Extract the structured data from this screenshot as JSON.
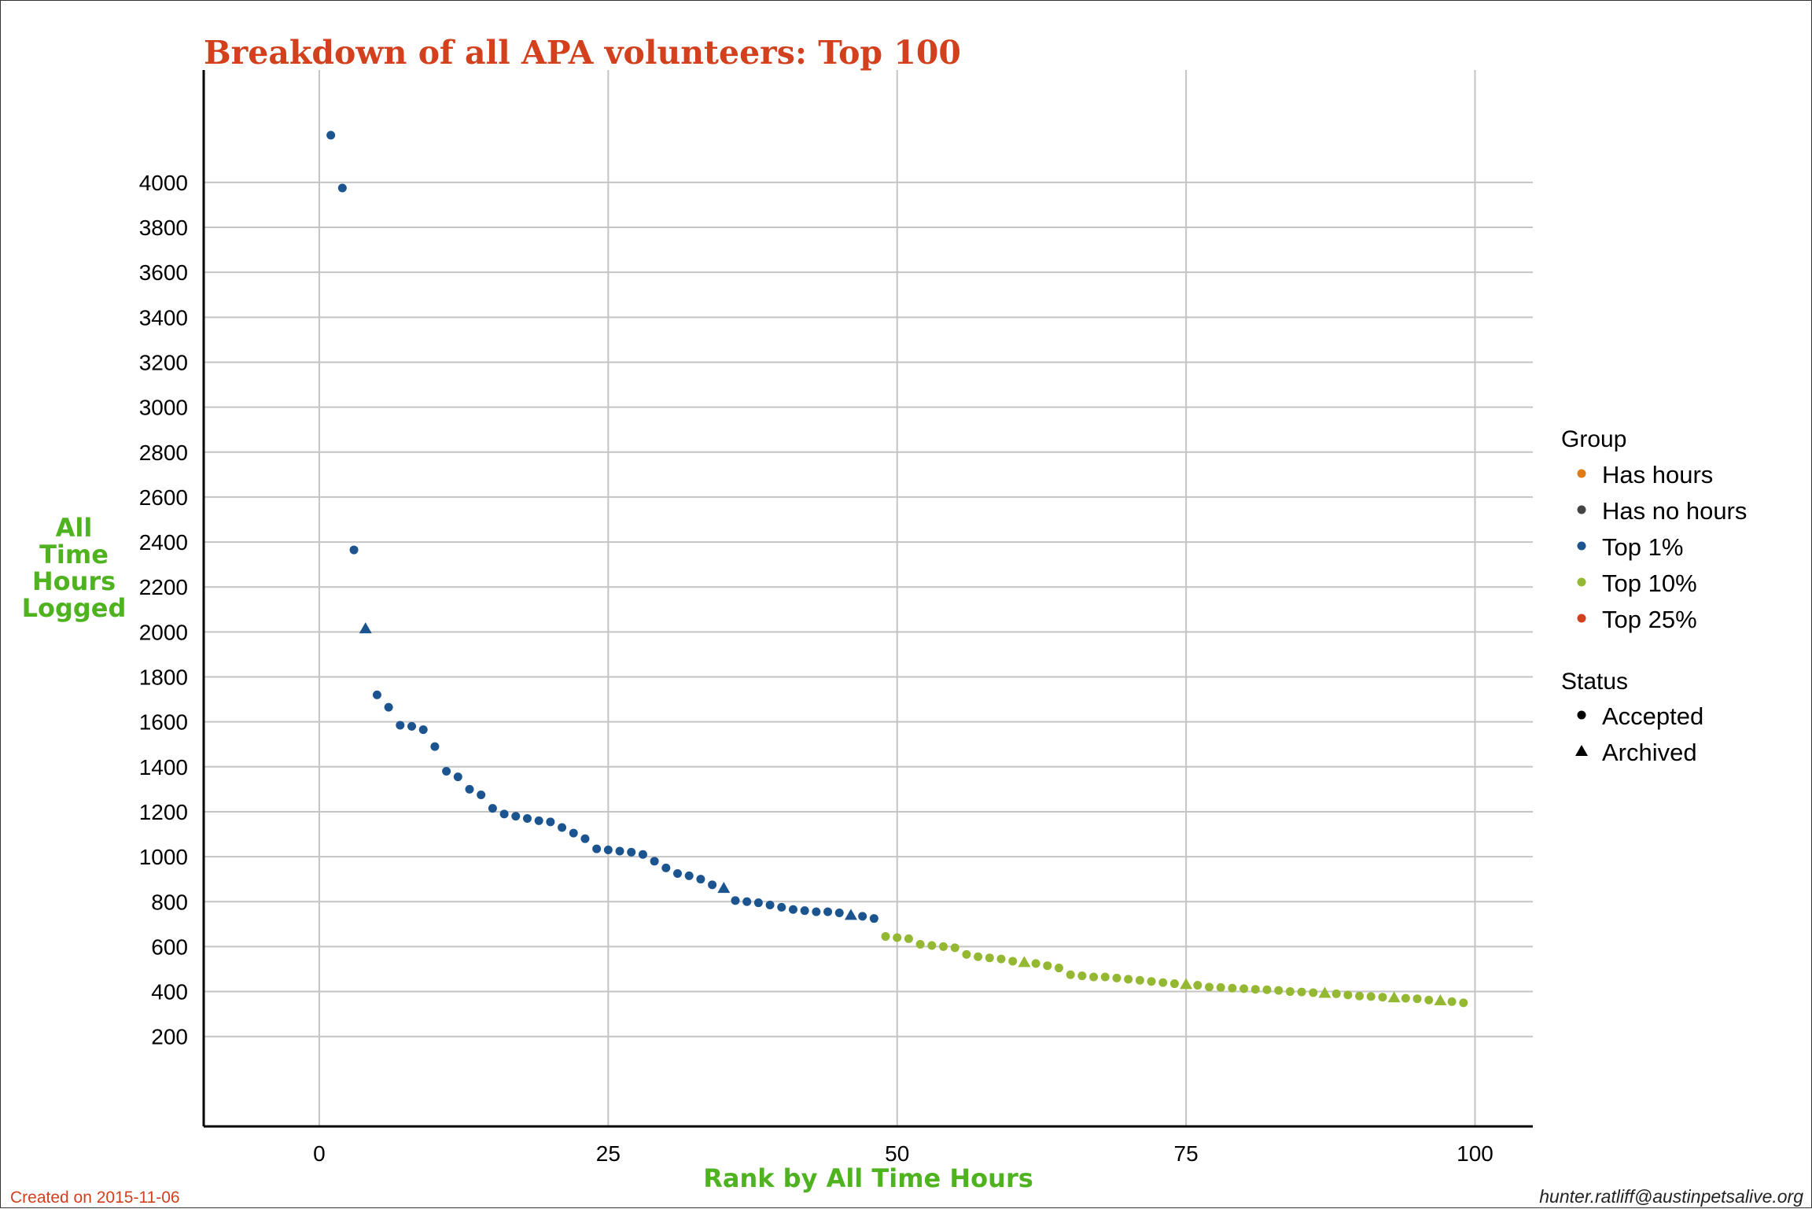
{
  "chart_data": {
    "type": "scatter",
    "title": "Breakdown of all APA volunteers: Top 100",
    "xlabel": "Rank by All Time Hours",
    "ylabel": [
      "All",
      "Time",
      "Hours",
      "Logged"
    ],
    "xlim": [
      -10,
      105
    ],
    "ylim": [
      -200,
      4500
    ],
    "x_ticks": [
      0,
      25,
      50,
      75,
      100
    ],
    "y_ticks": [
      200,
      400,
      600,
      800,
      1000,
      1200,
      1400,
      1600,
      1800,
      2000,
      2200,
      2400,
      2600,
      2800,
      3000,
      3200,
      3400,
      3600,
      3800,
      4000
    ],
    "grid": true,
    "colors": {
      "Has hours": "#e07b14",
      "Has no hours": "#444444",
      "Top 1%": "#1c5490",
      "Top 10%": "#94b832",
      "Top 25%": "#d2401e",
      "title": "#d2401e",
      "axis_title": "#4fb320"
    },
    "legend": {
      "position": "right",
      "group_title": "Group",
      "groups": [
        "Has hours",
        "Has no hours",
        "Top 1%",
        "Top 10%",
        "Top 25%"
      ],
      "status_title": "Status",
      "statuses": [
        {
          "label": "Accepted",
          "shape": "circle"
        },
        {
          "label": "Archived",
          "shape": "triangle"
        }
      ]
    },
    "series": [
      {
        "name": "Top 1%",
        "points": [
          {
            "x": 1,
            "y": 4210,
            "s": "circle"
          },
          {
            "x": 2,
            "y": 3975,
            "s": "circle"
          },
          {
            "x": 3,
            "y": 2365,
            "s": "circle"
          },
          {
            "x": 4,
            "y": 2015,
            "s": "triangle"
          },
          {
            "x": 5,
            "y": 1720,
            "s": "circle"
          },
          {
            "x": 6,
            "y": 1665,
            "s": "circle"
          },
          {
            "x": 7,
            "y": 1585,
            "s": "circle"
          },
          {
            "x": 8,
            "y": 1580,
            "s": "circle"
          },
          {
            "x": 9,
            "y": 1565,
            "s": "circle"
          },
          {
            "x": 10,
            "y": 1490,
            "s": "circle"
          },
          {
            "x": 11,
            "y": 1380,
            "s": "circle"
          },
          {
            "x": 12,
            "y": 1355,
            "s": "circle"
          },
          {
            "x": 13,
            "y": 1300,
            "s": "circle"
          },
          {
            "x": 14,
            "y": 1275,
            "s": "circle"
          },
          {
            "x": 15,
            "y": 1215,
            "s": "circle"
          },
          {
            "x": 16,
            "y": 1190,
            "s": "circle"
          },
          {
            "x": 17,
            "y": 1180,
            "s": "circle"
          },
          {
            "x": 18,
            "y": 1170,
            "s": "circle"
          },
          {
            "x": 19,
            "y": 1160,
            "s": "circle"
          },
          {
            "x": 20,
            "y": 1155,
            "s": "circle"
          },
          {
            "x": 21,
            "y": 1130,
            "s": "circle"
          },
          {
            "x": 22,
            "y": 1105,
            "s": "circle"
          },
          {
            "x": 23,
            "y": 1080,
            "s": "circle"
          },
          {
            "x": 24,
            "y": 1035,
            "s": "circle"
          },
          {
            "x": 25,
            "y": 1030,
            "s": "circle"
          },
          {
            "x": 26,
            "y": 1025,
            "s": "circle"
          },
          {
            "x": 27,
            "y": 1020,
            "s": "circle"
          },
          {
            "x": 28,
            "y": 1010,
            "s": "circle"
          },
          {
            "x": 29,
            "y": 980,
            "s": "circle"
          },
          {
            "x": 30,
            "y": 950,
            "s": "circle"
          },
          {
            "x": 31,
            "y": 925,
            "s": "circle"
          },
          {
            "x": 32,
            "y": 915,
            "s": "circle"
          },
          {
            "x": 33,
            "y": 900,
            "s": "circle"
          },
          {
            "x": 34,
            "y": 875,
            "s": "circle"
          },
          {
            "x": 35,
            "y": 860,
            "s": "triangle"
          },
          {
            "x": 36,
            "y": 805,
            "s": "circle"
          },
          {
            "x": 37,
            "y": 800,
            "s": "circle"
          },
          {
            "x": 38,
            "y": 795,
            "s": "circle"
          },
          {
            "x": 39,
            "y": 785,
            "s": "circle"
          },
          {
            "x": 40,
            "y": 775,
            "s": "circle"
          },
          {
            "x": 41,
            "y": 765,
            "s": "circle"
          },
          {
            "x": 42,
            "y": 760,
            "s": "circle"
          },
          {
            "x": 43,
            "y": 755,
            "s": "circle"
          },
          {
            "x": 44,
            "y": 755,
            "s": "circle"
          },
          {
            "x": 45,
            "y": 750,
            "s": "circle"
          },
          {
            "x": 46,
            "y": 740,
            "s": "triangle"
          },
          {
            "x": 47,
            "y": 735,
            "s": "circle"
          },
          {
            "x": 48,
            "y": 725,
            "s": "circle"
          }
        ]
      },
      {
        "name": "Top 10%",
        "points": [
          {
            "x": 49,
            "y": 645,
            "s": "circle"
          },
          {
            "x": 50,
            "y": 640,
            "s": "circle"
          },
          {
            "x": 51,
            "y": 635,
            "s": "circle"
          },
          {
            "x": 52,
            "y": 610,
            "s": "circle"
          },
          {
            "x": 53,
            "y": 605,
            "s": "circle"
          },
          {
            "x": 54,
            "y": 600,
            "s": "circle"
          },
          {
            "x": 55,
            "y": 595,
            "s": "circle"
          },
          {
            "x": 56,
            "y": 565,
            "s": "circle"
          },
          {
            "x": 57,
            "y": 555,
            "s": "circle"
          },
          {
            "x": 58,
            "y": 550,
            "s": "circle"
          },
          {
            "x": 59,
            "y": 545,
            "s": "circle"
          },
          {
            "x": 60,
            "y": 535,
            "s": "circle"
          },
          {
            "x": 61,
            "y": 530,
            "s": "triangle"
          },
          {
            "x": 62,
            "y": 525,
            "s": "circle"
          },
          {
            "x": 63,
            "y": 515,
            "s": "circle"
          },
          {
            "x": 64,
            "y": 505,
            "s": "circle"
          },
          {
            "x": 65,
            "y": 475,
            "s": "circle"
          },
          {
            "x": 66,
            "y": 470,
            "s": "circle"
          },
          {
            "x": 67,
            "y": 465,
            "s": "circle"
          },
          {
            "x": 68,
            "y": 465,
            "s": "circle"
          },
          {
            "x": 69,
            "y": 460,
            "s": "circle"
          },
          {
            "x": 70,
            "y": 455,
            "s": "circle"
          },
          {
            "x": 71,
            "y": 450,
            "s": "circle"
          },
          {
            "x": 72,
            "y": 445,
            "s": "circle"
          },
          {
            "x": 73,
            "y": 440,
            "s": "circle"
          },
          {
            "x": 74,
            "y": 435,
            "s": "circle"
          },
          {
            "x": 75,
            "y": 432,
            "s": "triangle"
          },
          {
            "x": 76,
            "y": 428,
            "s": "circle"
          },
          {
            "x": 77,
            "y": 420,
            "s": "circle"
          },
          {
            "x": 78,
            "y": 418,
            "s": "circle"
          },
          {
            "x": 79,
            "y": 415,
            "s": "circle"
          },
          {
            "x": 80,
            "y": 413,
            "s": "circle"
          },
          {
            "x": 81,
            "y": 410,
            "s": "circle"
          },
          {
            "x": 82,
            "y": 408,
            "s": "circle"
          },
          {
            "x": 83,
            "y": 405,
            "s": "circle"
          },
          {
            "x": 84,
            "y": 400,
            "s": "circle"
          },
          {
            "x": 85,
            "y": 398,
            "s": "circle"
          },
          {
            "x": 86,
            "y": 395,
            "s": "circle"
          },
          {
            "x": 87,
            "y": 393,
            "s": "triangle"
          },
          {
            "x": 88,
            "y": 390,
            "s": "circle"
          },
          {
            "x": 89,
            "y": 385,
            "s": "circle"
          },
          {
            "x": 90,
            "y": 380,
            "s": "circle"
          },
          {
            "x": 91,
            "y": 378,
            "s": "circle"
          },
          {
            "x": 92,
            "y": 375,
            "s": "circle"
          },
          {
            "x": 93,
            "y": 373,
            "s": "triangle"
          },
          {
            "x": 94,
            "y": 370,
            "s": "circle"
          },
          {
            "x": 95,
            "y": 368,
            "s": "circle"
          },
          {
            "x": 96,
            "y": 362,
            "s": "circle"
          },
          {
            "x": 97,
            "y": 360,
            "s": "triangle"
          },
          {
            "x": 98,
            "y": 355,
            "s": "circle"
          },
          {
            "x": 99,
            "y": 350,
            "s": "circle"
          }
        ]
      }
    ]
  },
  "footer": {
    "created": "Created on 2015-11-06",
    "created_color": "#d2401e",
    "contact": "hunter.ratliff@austinpetsalive.org"
  }
}
